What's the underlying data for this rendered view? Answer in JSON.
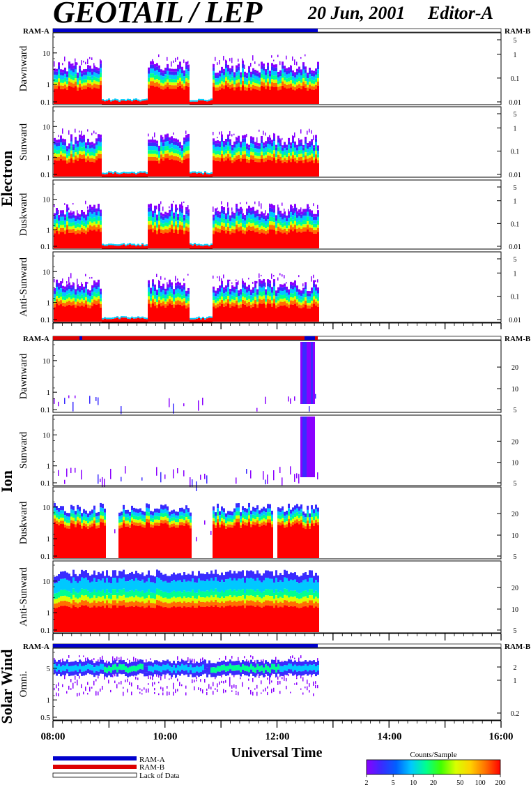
{
  "header": {
    "title": "GEOTAIL / LEP",
    "date": "20 Jun, 2001",
    "editor": "Editor-A"
  },
  "ram_labels": {
    "left": "RAM-A",
    "right": "RAM-B"
  },
  "colors": {
    "ram_a": "#0000cc",
    "ram_b": "#dd0000",
    "colorbar": [
      "#8a00ff",
      "#3a2bff",
      "#0060ff",
      "#00c8ff",
      "#00ff90",
      "#40ff00",
      "#d8ff00",
      "#ffd000",
      "#ff7000",
      "#ff0000"
    ]
  },
  "groups": [
    {
      "id": "electron",
      "label": "Electron"
    },
    {
      "id": "ion",
      "label": "Ion"
    },
    {
      "id": "solar",
      "label": "Solar Wind"
    }
  ],
  "panels": {
    "electron_dawnward": {
      "label": "Dawnward",
      "left_ticks": [
        "10",
        "1",
        "0.1"
      ],
      "right_ticks": [
        "5",
        "1",
        "0.1",
        "0.01"
      ]
    },
    "electron_sunward": {
      "label": "Sunward",
      "left_ticks": [
        "10",
        "1",
        "0.1"
      ],
      "right_ticks": [
        "5",
        "1",
        "0.1",
        "0.01"
      ]
    },
    "electron_duskward": {
      "label": "Duskward",
      "left_ticks": [
        "10",
        "1",
        "0.1"
      ],
      "right_ticks": [
        "5",
        "1",
        "0.1",
        "0.01"
      ]
    },
    "electron_antisunward": {
      "label": "Anti-Sunward",
      "left_ticks": [
        "10",
        "1",
        "0.1"
      ],
      "right_ticks": [
        "5",
        "1",
        "0.1",
        "0.01"
      ]
    },
    "ion_dawnward": {
      "label": "Dawnward",
      "left_ticks": [
        "10",
        "1",
        "0.1"
      ],
      "right_ticks": [
        "20",
        "10",
        "5"
      ]
    },
    "ion_sunward": {
      "label": "Sunward",
      "left_ticks": [
        "10",
        "1",
        "0.1"
      ],
      "right_ticks": [
        "20",
        "10",
        "5"
      ]
    },
    "ion_duskward": {
      "label": "Duskward",
      "left_ticks": [
        "10",
        "1",
        "0.1"
      ],
      "right_ticks": [
        "20",
        "10",
        "5"
      ]
    },
    "ion_antisunward": {
      "label": "Anti-Sunward",
      "left_ticks": [
        "10",
        "1",
        "0.1"
      ],
      "right_ticks": [
        "20",
        "10",
        "5"
      ]
    },
    "solar_omni": {
      "label": "Omni.",
      "left_ticks": [
        "5",
        "1",
        "0.5"
      ],
      "right_ticks": [
        "2",
        "1",
        "0.2"
      ]
    }
  },
  "legend": {
    "ram_a": "RAM-A",
    "ram_b": "RAM-B",
    "lack": "Lack of Data"
  },
  "colorbar": {
    "title": "Counts/Sample",
    "ticks": [
      "2",
      "5",
      "10",
      "20",
      "50",
      "100",
      "200"
    ]
  },
  "chart_data": {
    "type": "heatmap",
    "xlabel": "Universal Time",
    "x_tick_labels": [
      "08:00",
      "10:00",
      "12:00",
      "14:00",
      "16:00"
    ],
    "xlim": [
      "08:00",
      "16:00"
    ],
    "data_end": "12:42",
    "colorbar_range": [
      2,
      200
    ],
    "colorbar_scale": "log"
  }
}
